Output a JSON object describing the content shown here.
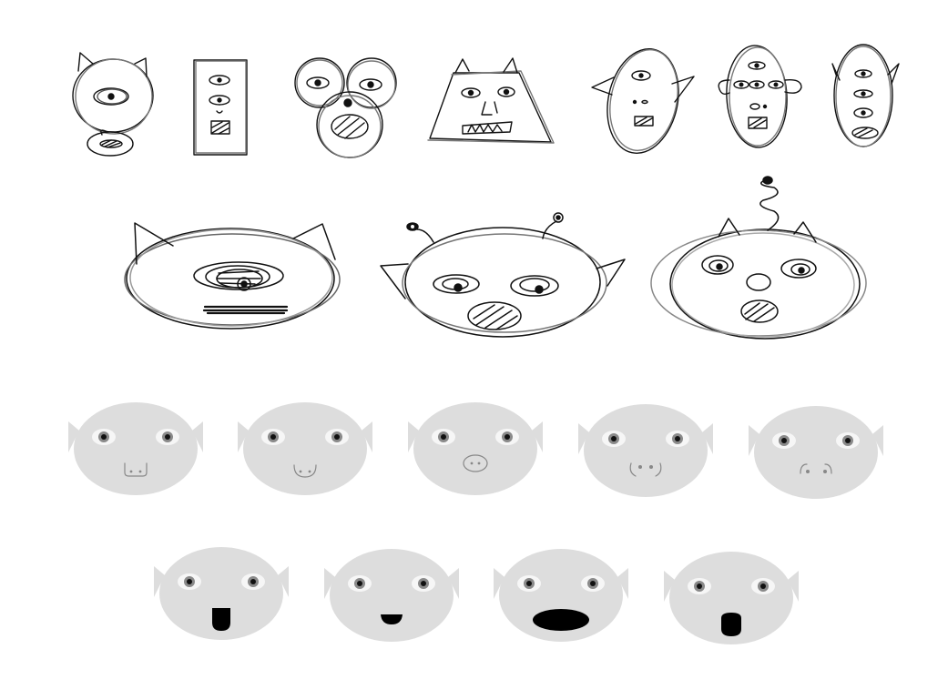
{
  "colors": {
    "background": "#ffffff",
    "sketch_ink": "#111111",
    "sketch_ink_light": "#888888",
    "face_fill": "#dddddd",
    "eye_white": "#f6f6f6",
    "iris": "#8a8a8a",
    "pupil": "#111111",
    "nose_stroke": "#888888",
    "mouth_fill": "#000000"
  },
  "sketch_rows": [
    {
      "row": "top",
      "items": [
        {
          "name": "sketch-cyclops-on-stand",
          "features": [
            "horns",
            "single-eye",
            "base-oval"
          ]
        },
        {
          "name": "sketch-rectangle-robot",
          "features": [
            "three-eyes",
            "small-mouth"
          ]
        },
        {
          "name": "sketch-triple-circle",
          "features": [
            "eyes",
            "hatched-mouth"
          ]
        },
        {
          "name": "sketch-trapezoid-cat",
          "features": [
            "ears",
            "two-eyes",
            "teeth"
          ]
        },
        {
          "name": "sketch-oval-horned-face",
          "features": [
            "horns",
            "one-eye",
            "mouth"
          ]
        },
        {
          "name": "sketch-oval-eared-face",
          "features": [
            "ears",
            "four-eyes",
            "mouth"
          ]
        },
        {
          "name": "sketch-oval-horned-narrow",
          "features": [
            "horns",
            "three-eyes",
            "mouth"
          ]
        }
      ]
    },
    {
      "row": "middle",
      "items": [
        {
          "name": "sketch-wide-cat-cyclops",
          "features": [
            "ears",
            "one-eye",
            "bar-mouth"
          ]
        },
        {
          "name": "sketch-wide-antenna-face",
          "features": [
            "antennae",
            "horns",
            "two-eyes",
            "mouth"
          ]
        },
        {
          "name": "sketch-wide-spring-cat",
          "features": [
            "spring-antenna",
            "ears",
            "two-eyes",
            "nose",
            "mouth"
          ]
        }
      ]
    }
  ],
  "nose_variants": [
    {
      "name": "face-nose-u-shape",
      "nose": "u-shape"
    },
    {
      "name": "face-nose-smile-dots",
      "nose": "smile-dots"
    },
    {
      "name": "face-nose-snout",
      "nose": "snout"
    },
    {
      "name": "face-nose-curly-dots",
      "nose": "curly-dots"
    },
    {
      "name": "face-nose-paren-dots",
      "nose": "paren-dots"
    }
  ],
  "mouth_variants": [
    {
      "name": "face-mouth-tall-rect",
      "mouth": "tall-rect"
    },
    {
      "name": "face-mouth-small-half",
      "mouth": "small-half"
    },
    {
      "name": "face-mouth-wide-oval",
      "mouth": "wide-oval"
    },
    {
      "name": "face-mouth-round-o",
      "mouth": "round-o"
    }
  ]
}
